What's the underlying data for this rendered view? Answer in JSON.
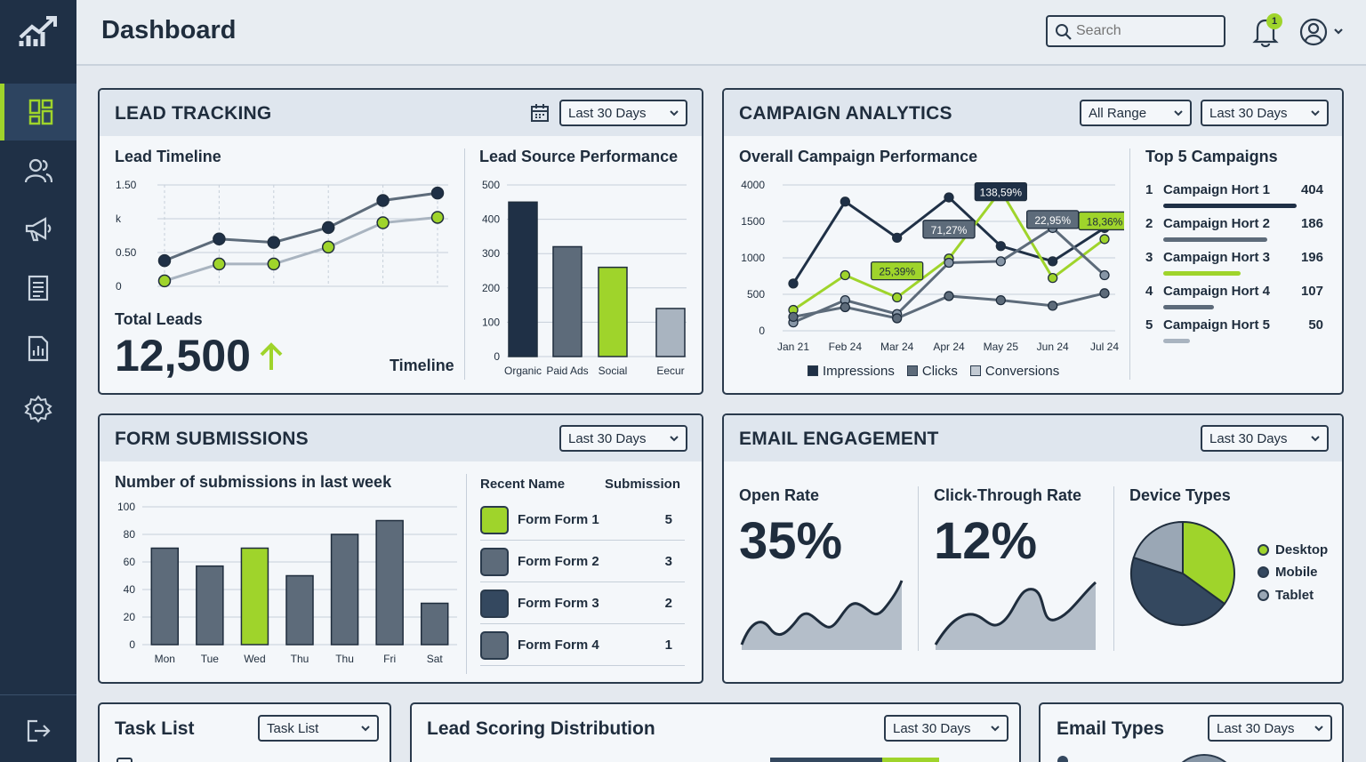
{
  "header": {
    "title": "Dashboard",
    "search_placeholder": "Search",
    "notification_count": "1"
  },
  "sidebar": {
    "items": [
      "dashboard-icon",
      "users-icon",
      "megaphone-icon",
      "reports-icon",
      "analytics-icon",
      "settings-icon"
    ],
    "logout": "logout-icon"
  },
  "colors": {
    "navy": "#1f3046",
    "accent": "#9fd42b",
    "slate": "#5d6b7a",
    "light": "#a9b4c0"
  },
  "lead_tracking": {
    "title": "LEAD TRACKING",
    "range": "Last 30 Days",
    "timeline_title": "Lead Timeline",
    "total_label": "Total Leads",
    "total_value": "12,500",
    "timeline_label": "Timeline",
    "source_title": "Lead Source Performance"
  },
  "campaign": {
    "title": "CAMPAIGN ANALYTICS",
    "range_a": "All Range",
    "range_b": "Last 30 Days",
    "overall_title": "Overall Campaign Performance",
    "top_title": "Top 5 Campaigns",
    "top": [
      {
        "rank": "1",
        "name": "Campaign Hort 1",
        "value": "404",
        "share": 1.0
      },
      {
        "rank": "2",
        "name": "Campaign Hort 2",
        "value": "186",
        "share": 0.78
      },
      {
        "rank": "3",
        "name": "Campaign Hort 3",
        "value": "196",
        "share": 0.58
      },
      {
        "rank": "4",
        "name": "Campaign Hort 4",
        "value": "107",
        "share": 0.38
      },
      {
        "rank": "5",
        "name": "Campaign Hort 5",
        "value": "50",
        "share": 0.2
      }
    ],
    "legend": [
      "Impressions",
      "Clicks",
      "Conversions"
    ]
  },
  "forms": {
    "title": "FORM SUBMISSIONS",
    "range": "Last 30 Days",
    "chart_title": "Number of submissions in last week",
    "col_name": "Recent Name",
    "col_sub": "Submission",
    "rows": [
      {
        "name": "Form Form 1",
        "value": "5"
      },
      {
        "name": "Form Form 2",
        "value": "3"
      },
      {
        "name": "Form Form 3",
        "value": "2"
      },
      {
        "name": "Form Form 4",
        "value": "1"
      }
    ]
  },
  "email": {
    "title": "EMAIL ENGAGEMENT",
    "range": "Last 30 Days",
    "open_label": "Open Rate",
    "open_value": "35%",
    "ctr_label": "Click-Through Rate",
    "ctr_value": "12%",
    "device_label": "Device Types",
    "devices": [
      "Desktop",
      "Mobile",
      "Tablet"
    ]
  },
  "bottom": {
    "task_title": "Task List",
    "task_dd": "Task List",
    "scoring_title": "Lead Scoring Distribution",
    "scoring_dd": "Last 30 Days",
    "types_title": "Email Types",
    "types_dd": "Last 30 Days"
  },
  "chart_data": [
    {
      "type": "line",
      "title": "Lead Timeline",
      "yticks": [
        "1.50",
        "k",
        "0.50",
        "0"
      ],
      "series": [
        {
          "values": [
            0.38,
            0.7,
            0.65,
            0.87,
            1.27,
            1.38
          ]
        },
        {
          "values": [
            0.08,
            0.33,
            0.33,
            0.58,
            0.94,
            1.02
          ]
        }
      ],
      "points": 6,
      "ylim": [
        0,
        1.5
      ]
    },
    {
      "type": "bar",
      "title": "Lead Source Performance",
      "categories": [
        "Organic",
        "Paid Ads",
        "Social",
        "Eecur"
      ],
      "values": [
        450,
        320,
        260,
        140
      ],
      "ylim": [
        0,
        500
      ],
      "yticks": [
        0,
        100,
        200,
        300,
        400,
        500
      ]
    },
    {
      "type": "line",
      "title": "Overall Campaign Performance",
      "categories": [
        "Jan 21",
        "Feb 24",
        "Mar 24",
        "Apr 24",
        "May 25",
        "Jun 24",
        "Jul 24"
      ],
      "ytick_labels": [
        "0",
        "500",
        "1000",
        "1500",
        "4000"
      ],
      "series": [
        {
          "name": "Impressions",
          "values": [
            3.4,
            9.3,
            6.7,
            9.6,
            6.1,
            5.0,
            7.4
          ]
        },
        {
          "name": "Clicks",
          "values": [
            1.5,
            4.0,
            2.4,
            5.2,
            10.1,
            3.8,
            6.6
          ]
        },
        {
          "name": "Conversions",
          "values": [
            0.6,
            2.2,
            1.2,
            4.9,
            5.0,
            7.4,
            4.0
          ]
        },
        {
          "name": "",
          "values": [
            1.0,
            1.7,
            0.9,
            2.5,
            2.2,
            1.8,
            2.7
          ]
        }
      ],
      "annotations": [
        {
          "text": "138,59%",
          "x": "May 25"
        },
        {
          "text": "71,27%",
          "x": "Apr 24"
        },
        {
          "text": "22,95%",
          "x": "Jun 24"
        },
        {
          "text": "18,36%",
          "x": "Jul 24"
        },
        {
          "text": "25,39%",
          "x": "Mar 24"
        }
      ]
    },
    {
      "type": "bar",
      "title": "Number of submissions in last week",
      "categories": [
        "Mon",
        "Tue",
        "Wed",
        "Thu",
        "Thu",
        "Fri",
        "Sat"
      ],
      "values": [
        70,
        57,
        70,
        50,
        80,
        90,
        30
      ],
      "ylim": [
        0,
        100
      ],
      "yticks": [
        0,
        20,
        40,
        60,
        80,
        100
      ]
    },
    {
      "type": "pie",
      "title": "Device Types",
      "categories": [
        "Desktop",
        "Mobile",
        "Tablet"
      ],
      "values": [
        35,
        45,
        20
      ]
    }
  ]
}
